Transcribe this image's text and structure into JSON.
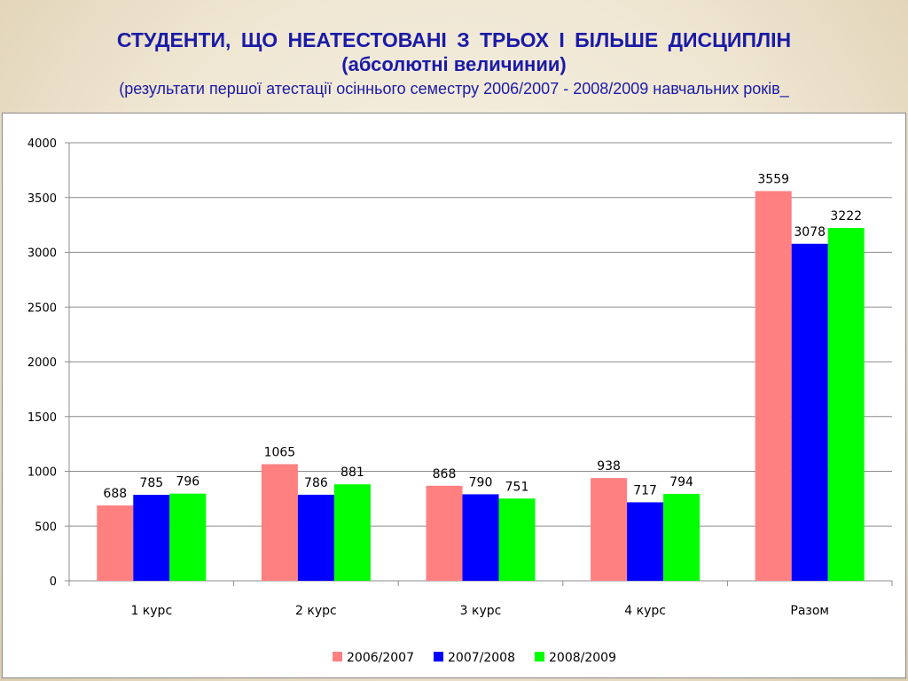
{
  "slide": {
    "title": "СТУДЕНТИ,  ЩО  НЕАТЕСТОВАНІ  З  ТРЬОХ  І  БІЛЬШЕ  ДИСЦИПЛІН",
    "subtitle": "(абсолютні величинии)",
    "note": "(результати першої атестації осіннього семестру 2006/2007 - 2008/2009 навчальних років_"
  },
  "colors": {
    "s1": "#ff8080",
    "s2": "#0000ff",
    "s3": "#00ff00",
    "title": "#1a1aa8"
  },
  "chart_data": {
    "type": "bar",
    "title": "",
    "xlabel": "",
    "ylabel": "",
    "categories": [
      "1 курс",
      "2 курс",
      "3 курс",
      "4 курс",
      "Разом"
    ],
    "series": [
      {
        "name": "2006/2007",
        "values": [
          688,
          1065,
          868,
          938,
          3559
        ]
      },
      {
        "name": "2007/2008",
        "values": [
          785,
          786,
          790,
          717,
          3078
        ]
      },
      {
        "name": "2008/2009",
        "values": [
          796,
          881,
          751,
          794,
          3222
        ]
      }
    ],
    "ylim": [
      0,
      4000
    ],
    "yticks": [
      0,
      500,
      1000,
      1500,
      2000,
      2500,
      3000,
      3500,
      4000
    ],
    "grid": true,
    "legend_position": "bottom",
    "data_labels": true
  }
}
